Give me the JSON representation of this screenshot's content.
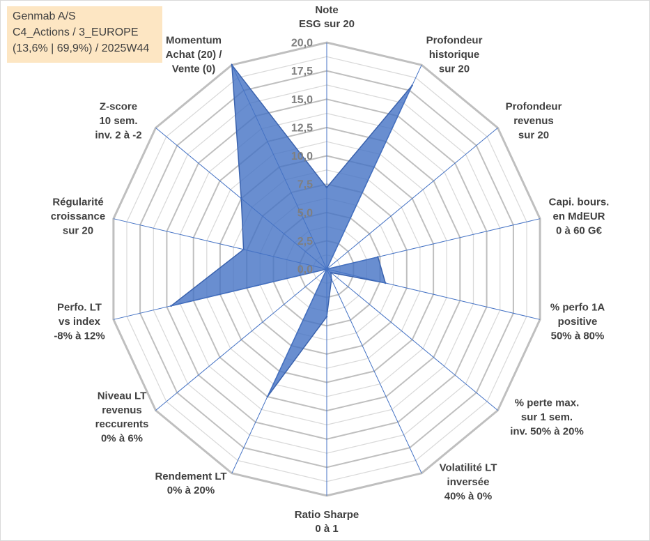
{
  "chart_data": {
    "type": "radar",
    "title": "Genmab A/S",
    "subtitle_lines": [
      "C4_Actions / 3_EUROPE",
      "(13,6% | 69,9%) / 2025W44"
    ],
    "categories": [
      [
        "Note",
        "ESG sur 20"
      ],
      [
        "Profondeur",
        "historique",
        "sur 20"
      ],
      [
        "Profondeur",
        "revenus",
        "sur 20"
      ],
      [
        "Capi. bours.",
        "en MdEUR",
        "0 à 60 G€"
      ],
      [
        "% perfo 1A",
        "positive",
        "50% à 80%"
      ],
      [
        "% perte max.",
        "sur 1 sem.",
        "inv. 50% à 20%"
      ],
      [
        "Volatilité LT",
        "inversée",
        "40% à 0%"
      ],
      [
        "Ratio Sharpe",
        "0 à 1"
      ],
      [
        "Rendement LT",
        "0% à 20%"
      ],
      [
        "Niveau LT",
        "revenus",
        "reccurents",
        "0% à 6%"
      ],
      [
        "Perfo. LT",
        "vs index",
        "-8% à 12%"
      ],
      [
        "Régularité",
        "croissance",
        "sur 20"
      ],
      [
        "Z-score",
        "10 sem.",
        "inv. 2 à -2"
      ],
      [
        "Momentum",
        "Achat (20) /",
        "Vente (0)"
      ]
    ],
    "series": [
      {
        "values": [
          7.2,
          18,
          0,
          4.8,
          5.5,
          0.5,
          1,
          4.2,
          12.5,
          0,
          14.6,
          7.8,
          10,
          20
        ],
        "color": "#4472c4"
      }
    ],
    "rlim": [
      0,
      20
    ],
    "r_ticks": [
      0,
      2.5,
      5,
      7.5,
      10,
      12.5,
      15,
      17.5,
      20
    ],
    "r_tick_labels": [
      "0,0",
      "2,5",
      "5,0",
      "7,5",
      "10,0",
      "12,5",
      "15,0",
      "17,5",
      "20,0"
    ],
    "grid": true,
    "legend": false,
    "colors": {
      "series_outline": "#3a62ad",
      "spokes": "#4472c4",
      "grid_major": "#bfbfbf",
      "grid_minor": "#d9d9d9",
      "title_box": "#fde6c3",
      "frame_border": "#d9d9d9"
    }
  }
}
